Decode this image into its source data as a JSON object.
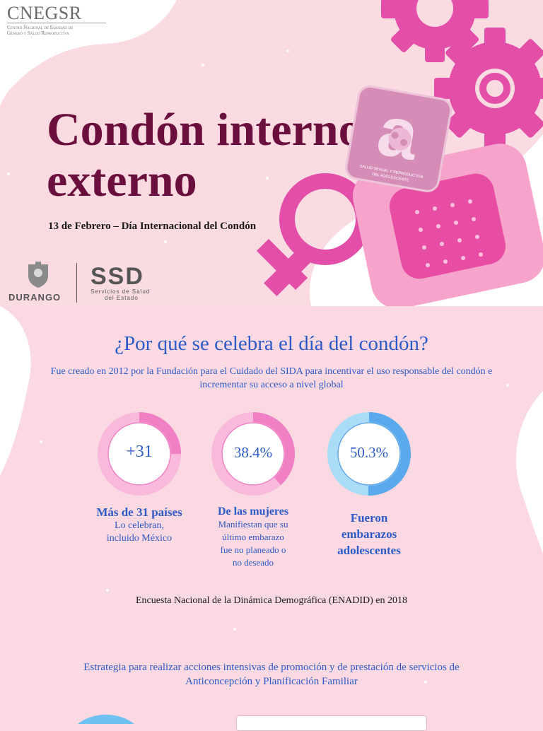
{
  "header": {
    "org_logo": "CNEGSR",
    "org_subtitle_line1": "Centro Nacional de Equidad de",
    "org_subtitle_line2": "Género y Salud Reproductiva",
    "title_line1": "Condón interno y",
    "title_line2": "externo",
    "subtitle": "13 de Febrero – Día Internacional del Condón",
    "durango_label": "DURANGO",
    "ssd_label": "SSD",
    "ssd_sub_line1": "Servicios de Salud",
    "ssd_sub_line2": "del Estado",
    "badge_text": "SALUD SEXUAL Y REPRODUCTIVA DEL ADOLESCENTE",
    "badge_letter": "a"
  },
  "section": {
    "question": "¿Por qué se celebra el día del condón?",
    "description": "Fue creado en 2012 por la Fundación para el Cuidado del SIDA para incentivar el uso responsable del condón e incrementar su acceso a nivel global",
    "stats": [
      {
        "value": "+31",
        "fill": 0.25,
        "color": "#f07fc4",
        "track": "#f9b9dd",
        "head": "Más de 31 países",
        "desc": "Lo celebran, incluido México"
      },
      {
        "value": "38.4%",
        "fill": 0.384,
        "color": "#f07fc4",
        "track": "#f9b9dd",
        "head": "De las mujeres",
        "desc": "Manifiestan que su último embarazo fue no planeado o no deseado"
      },
      {
        "value": "50.3%",
        "fill": 0.503,
        "color": "#5aa9ec",
        "track": "#a9dcf6",
        "head": "Fueron embarazos adolescentes",
        "desc": ""
      }
    ],
    "source": "Encuesta Nacional de la Dinámica Demográfica (ENADID) en 2018",
    "strategy": "Estrategia para realizar acciones intensivas de promoción y de prestación de servicios de Anticoncepción y Planificación Familiar"
  },
  "colors": {
    "background": "#fbd9e2",
    "title": "#6b0f3e",
    "accent_blue": "#2c5ac8",
    "pink": "#e34fa8"
  }
}
